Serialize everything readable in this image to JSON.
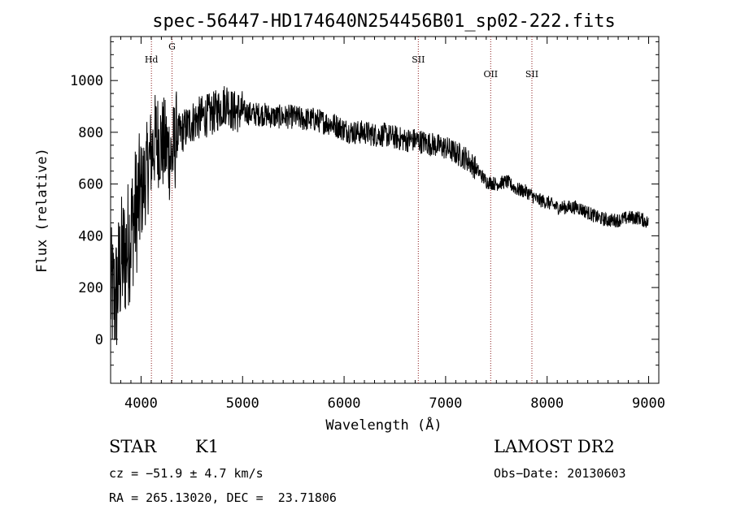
{
  "chart_data": {
    "type": "line",
    "title": "spec-56447-HD174640N254456B01_sp02-222.fits",
    "xlabel": "Wavelength (Å)",
    "ylabel": "Flux (relative)",
    "xlim": [
      3700,
      9100
    ],
    "ylim": [
      -170,
      1170
    ],
    "x_ticks": [
      4000,
      5000,
      6000,
      7000,
      8000,
      9000
    ],
    "y_ticks": [
      0,
      200,
      400,
      600,
      800,
      1000
    ],
    "series": [
      {
        "name": "flux",
        "x": [
          3700,
          3750,
          3800,
          3850,
          3900,
          3950,
          4000,
          4050,
          4100,
          4150,
          4200,
          4250,
          4300,
          4350,
          4400,
          4450,
          4500,
          4600,
          4700,
          4800,
          4850,
          4900,
          5000,
          5100,
          5200,
          5300,
          5400,
          5500,
          5600,
          5700,
          5800,
          5900,
          6000,
          6100,
          6200,
          6300,
          6400,
          6500,
          6600,
          6700,
          6800,
          6900,
          7000,
          7100,
          7200,
          7300,
          7400,
          7500,
          7600,
          7700,
          7800,
          7900,
          8000,
          8100,
          8200,
          8300,
          8400,
          8500,
          8600,
          8700,
          8800,
          8900,
          9000
        ],
        "y": [
          180,
          150,
          300,
          330,
          420,
          500,
          560,
          640,
          720,
          780,
          760,
          740,
          700,
          780,
          800,
          820,
          840,
          860,
          870,
          900,
          920,
          880,
          880,
          870,
          870,
          860,
          860,
          860,
          850,
          850,
          840,
          830,
          810,
          800,
          800,
          790,
          790,
          780,
          770,
          770,
          760,
          750,
          740,
          720,
          700,
          660,
          610,
          600,
          610,
          580,
          570,
          540,
          530,
          510,
          510,
          510,
          490,
          470,
          460,
          460,
          470,
          470,
          450
        ]
      }
    ],
    "line_markers": [
      {
        "label": "Hd",
        "x": 4102
      },
      {
        "label": "G",
        "x": 4305
      },
      {
        "label": "SII",
        "x": 6731
      },
      {
        "label": "OII",
        "x": 7444
      },
      {
        "label": "SII",
        "x": 7850
      }
    ]
  },
  "info": {
    "class": "STAR",
    "subclass": "K1",
    "survey": "LAMOST DR2",
    "cz": "cz = −51.9 ± 4.7 km/s",
    "obs_date": "Obs−Date: 20130603",
    "coords": "RA = 265.13020, DEC =  23.71806"
  }
}
